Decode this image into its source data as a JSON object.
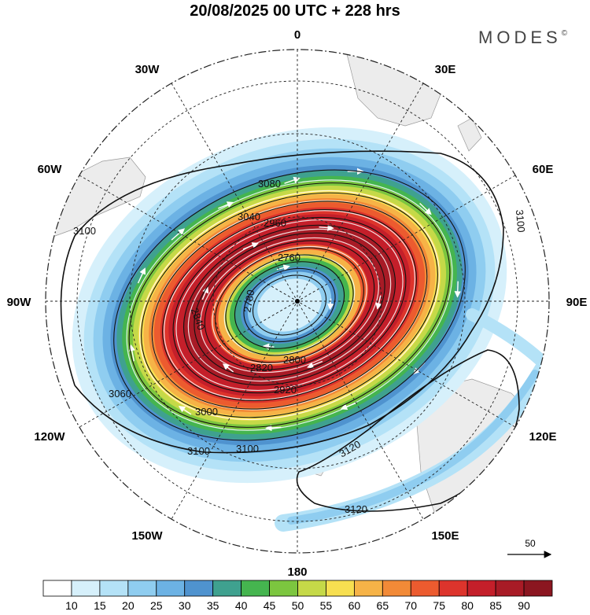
{
  "title": "20/08/2025  00 UTC  + 228 hrs",
  "brand": "MODES",
  "brand_mark": "©",
  "longitude_labels": [
    "0",
    "30E",
    "60E",
    "90E",
    "120E",
    "150E",
    "180",
    "150W",
    "120W",
    "90W",
    "60W",
    "30W"
  ],
  "contour_labels": [
    "2760",
    "2780",
    "2800",
    "2820",
    "2840",
    "2920",
    "2960",
    "3000",
    "3040",
    "3060",
    "3080",
    "3100",
    "3120"
  ],
  "reference_vector": {
    "value": "50"
  },
  "colorbar": {
    "ticks": [
      "10",
      "15",
      "20",
      "25",
      "30",
      "35",
      "40",
      "45",
      "50",
      "55",
      "60",
      "65",
      "70",
      "75",
      "80",
      "85",
      "90"
    ],
    "colors": [
      "#ffffff",
      "#d6f0fb",
      "#b4e2f7",
      "#8fcdf0",
      "#6cb2e4",
      "#4f93cf",
      "#3fa18f",
      "#45b54f",
      "#7cc63f",
      "#c5d948",
      "#f7df50",
      "#f6b347",
      "#f28a37",
      "#ec5b2f",
      "#dd342c",
      "#c41f2a",
      "#a81b26",
      "#8b1620"
    ]
  }
}
